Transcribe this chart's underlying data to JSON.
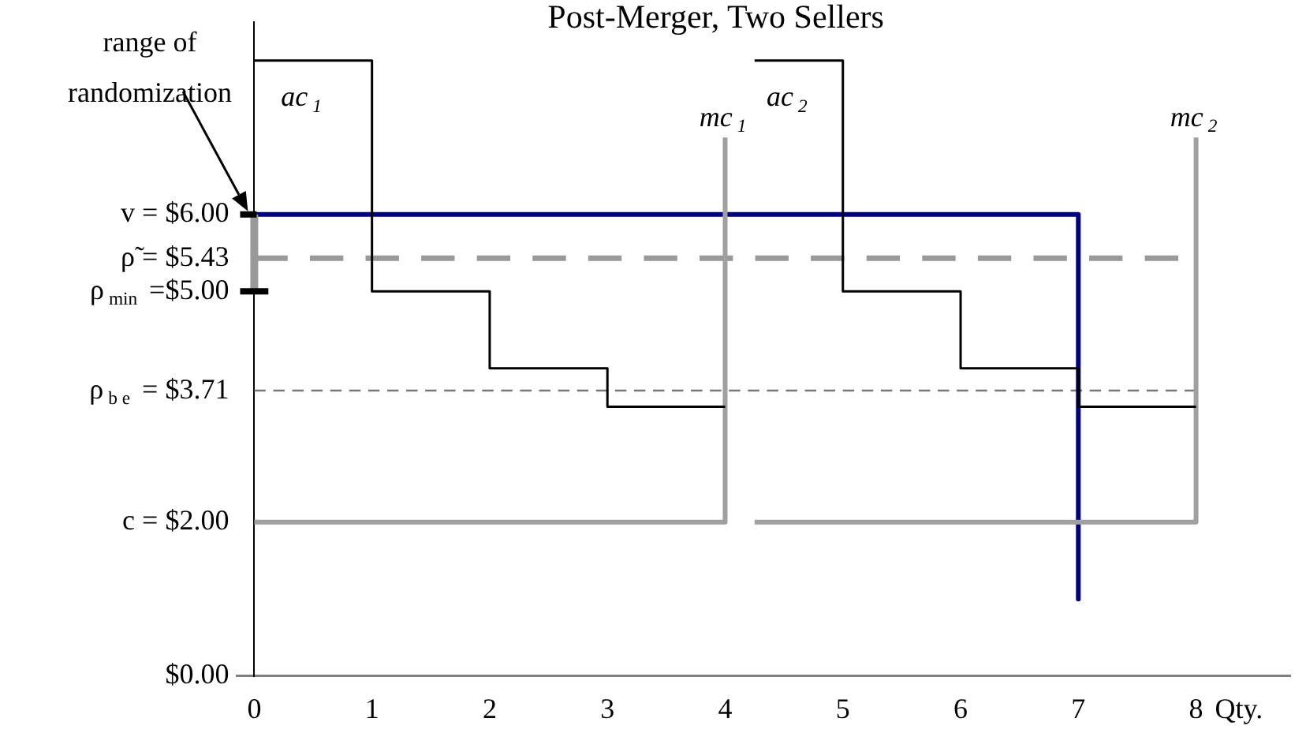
{
  "chart_data": {
    "type": "line",
    "title": "Post-Merger, Two Sellers",
    "xlabel": "Qty.",
    "xlim": [
      -0.15,
      8.8
    ],
    "xticks": [
      0,
      1,
      2,
      3,
      4,
      5,
      6,
      7,
      8
    ],
    "ylim": [
      0,
      8.5
    ],
    "yticks": [
      {
        "value": 0,
        "label": "$0.00"
      },
      {
        "value": 2,
        "label": "c = $2.00"
      },
      {
        "value": 3.71,
        "label": "ρ$_{b e}$ = $3.71"
      },
      {
        "value": 5,
        "label": "ρ$_{min}$ =$5.00"
      },
      {
        "value": 5.43,
        "label": "ρ̃ = $5.43"
      },
      {
        "value": 6,
        "label": "v = $6.00"
      }
    ],
    "grid": false,
    "legend": false,
    "marker": "none",
    "series": [
      {
        "color": "#000000",
        "x": [
          -0.12,
          0.12,
          0,
          -0.12,
          0.02
        ],
        "values": [
          5,
          5,
          null,
          6,
          6
        ]
      },
      {
        "color": "#999999",
        "x": [
          0,
          0
        ],
        "values": [
          5,
          6
        ]
      },
      {
        "name": "ac$_{1}$",
        "color": "#000000",
        "x": [
          0,
          1,
          1,
          2,
          2,
          3,
          3,
          4
        ],
        "values": [
          8,
          8,
          5,
          5,
          4,
          4,
          3.5,
          3.5
        ]
      },
      {
        "name": "ac$_{2}$",
        "color": "#000000",
        "x": [
          4.25,
          5,
          5,
          6,
          6,
          7,
          7,
          8
        ],
        "values": [
          8,
          8,
          5,
          5,
          4,
          4,
          3.5,
          3.5
        ]
      },
      {
        "name": "mc$_{1}$",
        "color": "#a0a0a0",
        "x": [
          0,
          4,
          4
        ],
        "values": [
          2,
          2,
          7
        ]
      },
      {
        "name": "mc$_{2}$",
        "color": "#a0a0a0",
        "x": [
          4.25,
          8,
          8
        ],
        "values": [
          2,
          2,
          7
        ]
      },
      {
        "color": "#000080",
        "x": [
          0,
          7,
          7
        ],
        "values": [
          6,
          6,
          1
        ]
      },
      {
        "color": "#999999",
        "line_style": "dashed",
        "x": [
          0,
          7.85
        ],
        "values": [
          5.43,
          5.43
        ]
      },
      {
        "color": "#777777",
        "line_style": "dashed",
        "x": [
          0,
          8
        ],
        "values": [
          3.71,
          3.71
        ]
      }
    ],
    "annotations": [
      "range of randomization"
    ]
  }
}
